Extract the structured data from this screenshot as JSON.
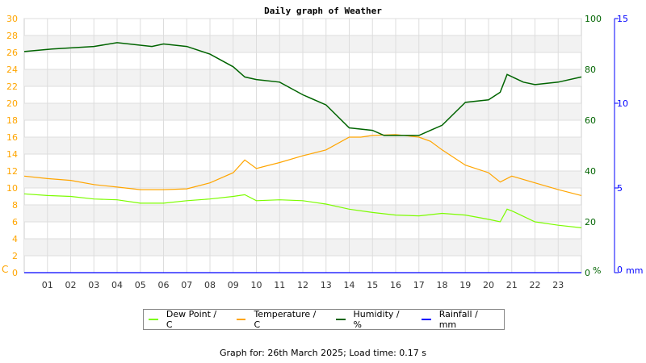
{
  "chart_data": {
    "type": "line",
    "title": "Daily graph of Weather",
    "x_ticks": [
      "01",
      "02",
      "03",
      "04",
      "05",
      "06",
      "07",
      "08",
      "09",
      "10",
      "11",
      "12",
      "13",
      "14",
      "15",
      "16",
      "17",
      "18",
      "19",
      "20",
      "21",
      "22",
      "23"
    ],
    "xlim": [
      0,
      24
    ],
    "left_axis": {
      "label": "C",
      "ylim": [
        0,
        30
      ],
      "ticks": [
        0,
        2,
        4,
        6,
        8,
        10,
        12,
        14,
        16,
        18,
        20,
        22,
        24,
        26,
        28,
        30
      ],
      "color": "#ffa500"
    },
    "right_axis_1": {
      "label": "%",
      "ylim": [
        0,
        100
      ],
      "ticks": [
        0,
        20,
        40,
        60,
        80,
        100
      ],
      "color": "#006400"
    },
    "right_axis_2": {
      "label": "mm",
      "ylim": [
        0,
        15
      ],
      "ticks": [
        0,
        5,
        10,
        15
      ],
      "color": "#0000ff"
    },
    "grid": true,
    "legend_placement": "bottom",
    "series": [
      {
        "name": "Dew Point / C",
        "color": "#7cfc00",
        "axis": "left",
        "x": [
          0,
          1,
          2,
          3,
          4,
          5,
          6,
          7,
          8,
          9,
          9.5,
          10,
          11,
          12,
          13,
          14,
          15,
          16,
          17,
          18,
          19,
          20,
          20.5,
          20.8,
          21,
          22,
          23,
          24
        ],
        "y": [
          9.3,
          9.1,
          9.0,
          8.7,
          8.6,
          8.2,
          8.2,
          8.5,
          8.7,
          9.0,
          9.2,
          8.5,
          8.6,
          8.5,
          8.1,
          7.5,
          7.1,
          6.8,
          6.7,
          7.0,
          6.8,
          6.3,
          6.0,
          7.5,
          7.3,
          6.0,
          5.6,
          5.3
        ]
      },
      {
        "name": "Temperature / C",
        "color": "#ffa500",
        "axis": "left",
        "x": [
          0,
          1,
          2,
          3,
          4,
          5,
          6,
          7,
          8,
          9,
          9.5,
          10,
          11,
          12,
          13,
          14,
          14.5,
          15,
          16,
          17,
          17.5,
          18,
          19,
          20,
          20.5,
          21,
          22,
          23,
          24
        ],
        "y": [
          11.4,
          11.1,
          10.9,
          10.4,
          10.1,
          9.8,
          9.8,
          9.9,
          10.6,
          11.8,
          13.3,
          12.3,
          13.0,
          13.8,
          14.5,
          16.0,
          16.0,
          16.2,
          16.3,
          16.0,
          15.5,
          14.5,
          12.7,
          11.8,
          10.7,
          11.4,
          10.6,
          9.8,
          9.1
        ]
      },
      {
        "name": "Humidity / %",
        "color": "#006400",
        "axis": "right_1",
        "x": [
          0,
          1.2,
          3,
          4,
          5.5,
          6,
          7,
          8,
          9,
          9.5,
          10,
          11,
          12,
          13,
          14,
          15,
          15.5,
          17,
          17.5,
          18,
          19,
          20,
          20.5,
          20.8,
          21.5,
          22,
          23,
          24
        ],
        "y": [
          87,
          88,
          89,
          90.5,
          89,
          90,
          89,
          86,
          81,
          77,
          76,
          75,
          70,
          66,
          57,
          56,
          54,
          54,
          56,
          58,
          67,
          68,
          71,
          78,
          75,
          74,
          75,
          77
        ]
      },
      {
        "name": "Rainfall / mm",
        "color": "#0000ff",
        "axis": "right_2",
        "x": [
          0,
          24
        ],
        "y": [
          0,
          0
        ]
      }
    ]
  },
  "footer": "Graph for: 26th March 2025; Load time: 0.17 s"
}
